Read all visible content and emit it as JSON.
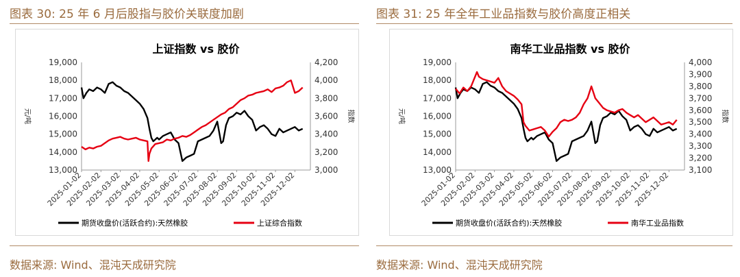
{
  "panels": [
    {
      "figure_title": "图表 30:  25 年 6 月后股指与胶价关联度加剧",
      "source": "数据来源:  Wind、混沌天成研究院",
      "chart_data": {
        "type": "line",
        "title": "上证指数  vs  胶价",
        "ylabel_left": "元/吨",
        "ylabel_right": "指数",
        "left_ylim": [
          13000,
          19000
        ],
        "right_ylim": [
          3000,
          4200
        ],
        "left_ticks": [
          "13,000",
          "14,000",
          "15,000",
          "16,000",
          "17,000",
          "18,000",
          "19,000"
        ],
        "right_ticks": [
          "3,000",
          "3,200",
          "3,400",
          "3,600",
          "3,800",
          "4,000",
          "4,200"
        ],
        "x_ticks": [
          "2025-01-02",
          "2025-02-02",
          "2025-03-02",
          "2025-04-02",
          "2025-05-02",
          "2025-06-02",
          "2025-07-02",
          "2025-08-02",
          "2025-09-02",
          "2025-10-02",
          "2025-11-02",
          "2025-12-02"
        ],
        "x_range": [
          0,
          11.8
        ],
        "grid": false,
        "legend_position": "bottom",
        "series": [
          {
            "name": "期货收盘价(活跃合约):天然橡胶",
            "color": "#000000",
            "axis": "left",
            "x": [
              0,
              0.1,
              0.25,
              0.4,
              0.6,
              0.8,
              1.0,
              1.2,
              1.4,
              1.6,
              1.8,
              2.0,
              2.2,
              2.4,
              2.6,
              2.8,
              3.0,
              3.2,
              3.4,
              3.5,
              3.6,
              3.7,
              3.8,
              3.9,
              4.0,
              4.2,
              4.4,
              4.6,
              4.8,
              5.0,
              5.2,
              5.4,
              5.6,
              5.8,
              6.0,
              6.2,
              6.4,
              6.6,
              6.8,
              7.0,
              7.2,
              7.3,
              7.45,
              7.6,
              7.8,
              8.0,
              8.2,
              8.4,
              8.6,
              8.8,
              9.0,
              9.2,
              9.4,
              9.6,
              9.8,
              10.0,
              10.2,
              10.4,
              10.6,
              10.8,
              11.0,
              11.2,
              11.4
            ],
            "y": [
              17600,
              17000,
              17300,
              17500,
              17400,
              17600,
              17500,
              17300,
              17800,
              17900,
              17700,
              17600,
              17400,
              17300,
              17100,
              16900,
              16700,
              16400,
              15900,
              15300,
              14800,
              14600,
              14700,
              14800,
              14700,
              14900,
              15000,
              15100,
              14700,
              14500,
              13500,
              13700,
              13800,
              13900,
              14600,
              14700,
              14800,
              14900,
              15200,
              15700,
              14500,
              14600,
              15500,
              15900,
              16000,
              16200,
              16100,
              16300,
              16000,
              15800,
              15200,
              15400,
              15500,
              15300,
              15000,
              14900,
              15300,
              15100,
              15200,
              15300,
              15400,
              15200,
              15300
            ]
          },
          {
            "name": "上证综合指数",
            "color": "#e60012",
            "axis": "right",
            "x": [
              0,
              0.2,
              0.4,
              0.6,
              0.8,
              1.0,
              1.2,
              1.4,
              1.6,
              1.8,
              2.0,
              2.2,
              2.4,
              2.6,
              2.8,
              3.0,
              3.2,
              3.4,
              3.45,
              3.5,
              3.6,
              3.8,
              4.0,
              4.2,
              4.4,
              4.6,
              4.8,
              5.0,
              5.2,
              5.4,
              5.6,
              5.8,
              6.0,
              6.2,
              6.4,
              6.6,
              6.8,
              7.0,
              7.2,
              7.4,
              7.6,
              7.8,
              8.0,
              8.2,
              8.4,
              8.6,
              8.8,
              9.0,
              9.2,
              9.4,
              9.6,
              9.8,
              10.0,
              10.2,
              10.4,
              10.6,
              10.8,
              11.0,
              11.2,
              11.4
            ],
            "y": [
              3260,
              3230,
              3250,
              3240,
              3260,
              3270,
              3300,
              3330,
              3350,
              3360,
              3370,
              3350,
              3340,
              3350,
              3360,
              3340,
              3330,
              3320,
              3100,
              3180,
              3240,
              3290,
              3300,
              3310,
              3340,
              3330,
              3350,
              3360,
              3380,
              3370,
              3390,
              3420,
              3450,
              3480,
              3500,
              3530,
              3560,
              3590,
              3620,
              3640,
              3680,
              3700,
              3740,
              3780,
              3800,
              3830,
              3840,
              3860,
              3870,
              3880,
              3900,
              3870,
              3910,
              3920,
              3940,
              3980,
              4000,
              3860,
              3880,
              3920
            ]
          }
        ]
      }
    },
    {
      "figure_title": "图表 31: 25 年全年工业品指数与胶价高度正相关",
      "source": "数据来源:  Wind、混沌天成研究院",
      "chart_data": {
        "type": "line",
        "title": "南华工业品指数  vs  胶价",
        "ylabel_left": "元/吨",
        "ylabel_right": "指数",
        "left_ylim": [
          13000,
          19000
        ],
        "right_ylim": [
          3100,
          4000
        ],
        "left_ticks": [
          "13,000",
          "14,000",
          "15,000",
          "16,000",
          "17,000",
          "18,000",
          "19,000"
        ],
        "right_ticks": [
          "3,100",
          "3,200",
          "3,300",
          "3,400",
          "3,500",
          "3,600",
          "3,700",
          "3,800",
          "3,900",
          "4,000"
        ],
        "x_ticks": [
          "2025-01-02",
          "2025-02-02",
          "2025-03-02",
          "2025-04-02",
          "2025-05-02",
          "2025-06-02",
          "2025-07-02",
          "2025-08-02",
          "2025-09-02",
          "2025-10-02",
          "2025-11-02",
          "2025-12-02"
        ],
        "x_range": [
          0,
          11.8
        ],
        "grid": false,
        "legend_position": "bottom",
        "series": [
          {
            "name": "期货收盘价(活跃合约):天然橡胶",
            "color": "#000000",
            "axis": "left",
            "x": [
              0,
              0.1,
              0.25,
              0.4,
              0.6,
              0.8,
              1.0,
              1.2,
              1.4,
              1.6,
              1.8,
              2.0,
              2.2,
              2.4,
              2.6,
              2.8,
              3.0,
              3.2,
              3.4,
              3.5,
              3.6,
              3.7,
              3.8,
              3.9,
              4.0,
              4.2,
              4.4,
              4.6,
              4.8,
              5.0,
              5.2,
              5.4,
              5.6,
              5.8,
              6.0,
              6.2,
              6.4,
              6.6,
              6.8,
              7.0,
              7.2,
              7.3,
              7.45,
              7.6,
              7.8,
              8.0,
              8.2,
              8.4,
              8.6,
              8.8,
              9.0,
              9.2,
              9.4,
              9.6,
              9.8,
              10.0,
              10.2,
              10.4,
              10.6,
              10.8,
              11.0,
              11.2,
              11.4
            ],
            "y": [
              17600,
              17000,
              17300,
              17500,
              17400,
              17600,
              17500,
              17300,
              17800,
              17900,
              17700,
              17600,
              17400,
              17300,
              17100,
              16900,
              16700,
              16400,
              15900,
              15300,
              14800,
              14600,
              14700,
              14800,
              14700,
              14900,
              15000,
              15100,
              14700,
              14500,
              13500,
              13700,
              13800,
              13900,
              14600,
              14700,
              14800,
              14900,
              15200,
              15700,
              14500,
              14600,
              15500,
              15900,
              16000,
              16200,
              16100,
              16300,
              16000,
              15800,
              15200,
              15400,
              15500,
              15300,
              15000,
              14900,
              15300,
              15100,
              15200,
              15300,
              15400,
              15200,
              15300
            ]
          },
          {
            "name": "南华工业品指数",
            "color": "#e60012",
            "axis": "right",
            "x": [
              0,
              0.2,
              0.4,
              0.6,
              0.8,
              1.0,
              1.1,
              1.2,
              1.4,
              1.6,
              1.8,
              2.0,
              2.2,
              2.4,
              2.6,
              2.8,
              3.0,
              3.2,
              3.4,
              3.5,
              3.6,
              3.8,
              4.0,
              4.2,
              4.4,
              4.6,
              4.8,
              5.0,
              5.2,
              5.4,
              5.6,
              5.8,
              6.0,
              6.2,
              6.4,
              6.6,
              6.8,
              7.0,
              7.2,
              7.4,
              7.6,
              7.8,
              8.0,
              8.2,
              8.4,
              8.6,
              8.8,
              9.0,
              9.2,
              9.4,
              9.6,
              9.8,
              10.0,
              10.2,
              10.4,
              10.6,
              10.8,
              11.0,
              11.2,
              11.4
            ],
            "y": [
              3780,
              3740,
              3790,
              3760,
              3800,
              3880,
              3920,
              3880,
              3860,
              3850,
              3840,
              3830,
              3870,
              3800,
              3760,
              3740,
              3720,
              3690,
              3650,
              3500,
              3470,
              3430,
              3440,
              3450,
              3460,
              3430,
              3380,
              3420,
              3450,
              3500,
              3520,
              3510,
              3520,
              3540,
              3580,
              3650,
              3700,
              3800,
              3700,
              3660,
              3620,
              3600,
              3590,
              3580,
              3600,
              3610,
              3580,
              3560,
              3540,
              3560,
              3530,
              3500,
              3520,
              3540,
              3510,
              3480,
              3490,
              3500,
              3480,
              3520
            ]
          }
        ]
      }
    }
  ]
}
